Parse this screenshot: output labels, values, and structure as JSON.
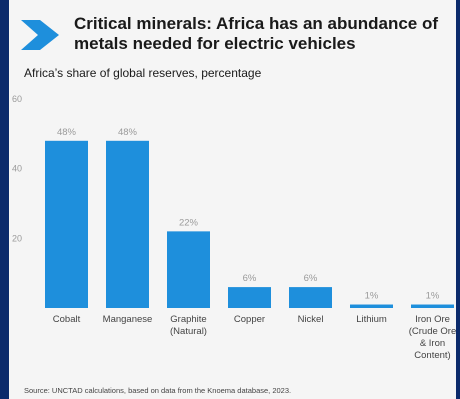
{
  "header": {
    "title": "Critical minerals: Africa has an abundance of metals needed for electric vehicles",
    "subtitle": "Africa’s share of global reserves, percentage",
    "source": "Source: UNCTAD calculations, based on data from the Knoema database, 2023.",
    "icon": "chevron-right-icon"
  },
  "colors": {
    "bar": "#1e8fdc",
    "band": "#0b2a6b",
    "chevron": "#1e8fdc"
  },
  "chart_data": {
    "type": "bar",
    "categories": [
      [
        "Cobalt"
      ],
      [
        "Manganese"
      ],
      [
        "Graphite",
        "(Natural)"
      ],
      [
        "Copper"
      ],
      [
        "Nickel"
      ],
      [
        "Lithium"
      ],
      [
        "Iron Ore",
        "(Crude Ore",
        "& Iron",
        "Content)"
      ]
    ],
    "values": [
      48,
      48,
      22,
      6,
      6,
      1,
      1
    ],
    "value_labels": [
      "48%",
      "48%",
      "22%",
      "6%",
      "6%",
      "1%",
      "1%"
    ],
    "title": "Critical minerals: Africa has an abundance of metals needed for electric vehicles",
    "ylabel": "Africa’s share of global reserves, percentage",
    "xlabel": "",
    "ylim": [
      0,
      60
    ],
    "yticks": [
      20,
      40,
      60
    ],
    "grid": false,
    "legend": "none"
  }
}
